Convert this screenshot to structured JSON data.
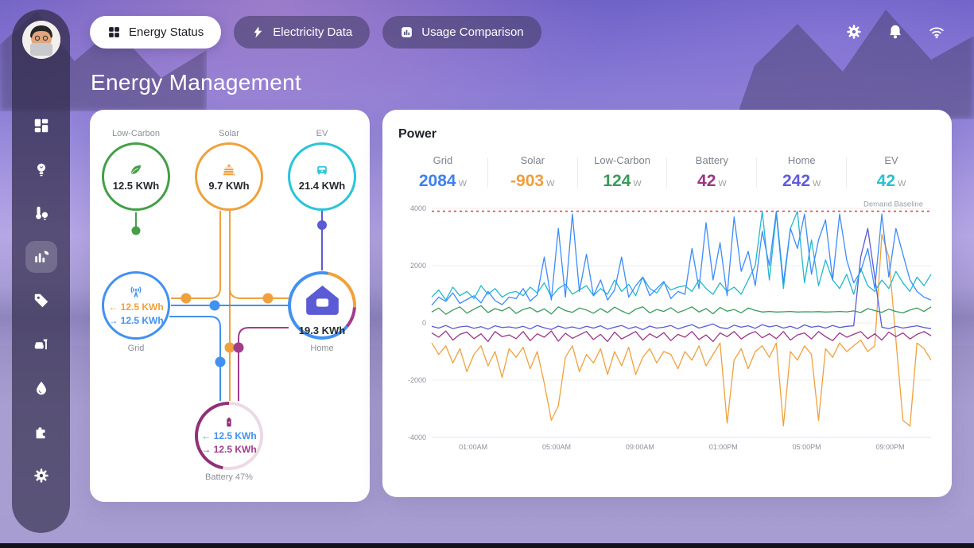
{
  "topbar": {
    "tabs": [
      {
        "id": "energy-status",
        "label": "Energy Status",
        "icon": "grid-icon",
        "active": true
      },
      {
        "id": "electricity-data",
        "label": "Electricity Data",
        "icon": "bolt-icon",
        "active": false
      },
      {
        "id": "usage-comparison",
        "label": "Usage Comparison",
        "icon": "bar-chart-icon",
        "active": false
      }
    ],
    "actions": [
      {
        "icon": "gear-icon"
      },
      {
        "icon": "bell-icon"
      },
      {
        "icon": "wifi-icon"
      }
    ]
  },
  "sidebar": {
    "items": [
      {
        "icon": "dashboard-icon",
        "active": false
      },
      {
        "icon": "bulb-icon",
        "active": false
      },
      {
        "icon": "climate-icon",
        "active": false
      },
      {
        "icon": "energy-chart-icon",
        "active": true
      },
      {
        "icon": "tag-icon",
        "active": false
      },
      {
        "icon": "room-icon",
        "active": false
      },
      {
        "icon": "water-icon",
        "active": false
      },
      {
        "icon": "puzzle-icon",
        "active": false
      },
      {
        "icon": "settings-icon",
        "active": false
      }
    ]
  },
  "page_title": "Energy Management",
  "flow": {
    "nodes": {
      "low_carbon": {
        "label": "Low-Carbon",
        "value": "12.5 KWh",
        "color": "#43a047"
      },
      "solar": {
        "label": "Solar",
        "value": "9.7 KWh",
        "color": "#f0a13d"
      },
      "ev": {
        "label": "EV",
        "value": "21.4 KWh",
        "color": "#29c4d9"
      },
      "grid": {
        "label": "Grid",
        "in": "← 12.5 KWh",
        "out": "→ 12.5 KWh",
        "color": "#4191f1",
        "in_color": "#f0a13d",
        "out_color": "#4191f1"
      },
      "home": {
        "label": "Home",
        "value": "19.3 KWh",
        "color": "#4191f1",
        "icon_color": "#5b5bd6"
      },
      "battery": {
        "label": "Battery 47%",
        "in": "← 12.5 KWh",
        "out": "→ 12.5 KWh",
        "percent": 47,
        "color": "#8e3178",
        "ring_rest": "#ecd9e6",
        "in_color": "#4191f1",
        "out_color": "#a13c8c"
      }
    }
  },
  "power": {
    "title": "Power",
    "stats": [
      {
        "label": "Grid",
        "value": "2084",
        "unit": "W",
        "color": "#3f7ff2"
      },
      {
        "label": "Solar",
        "value": "-903",
        "unit": "W",
        "color": "#f09d3c"
      },
      {
        "label": "Low-Carbon",
        "value": "124",
        "unit": "W",
        "color": "#3a9a5c"
      },
      {
        "label": "Battery",
        "value": "42",
        "unit": "W",
        "color": "#9c3587"
      },
      {
        "label": "Home",
        "value": "242",
        "unit": "W",
        "color": "#5f5ce0"
      },
      {
        "label": "EV",
        "value": "42",
        "unit": "W",
        "color": "#29c0d0"
      }
    ]
  },
  "chart_data": {
    "type": "line",
    "title": "Power",
    "ylabel": "W",
    "ylim": [
      -4000,
      4000
    ],
    "yticks": [
      4000,
      2000,
      0,
      -2000,
      -4000
    ],
    "xticks": [
      "01:00AM",
      "05:00AM",
      "09:00AM",
      "01:00PM",
      "05:00PM",
      "09:00PM"
    ],
    "grid": true,
    "legend_position": "none",
    "baseline": {
      "label": "Demand Baseline",
      "value": 3900,
      "color": "#e64545"
    },
    "series": [
      {
        "name": "Solar",
        "color": "#f0a13d",
        "values": [
          -700,
          -1100,
          -800,
          -1400,
          -900,
          -1700,
          -1100,
          -800,
          -1500,
          -1000,
          -1900,
          -900,
          -1200,
          -850,
          -1600,
          -1000,
          -2100,
          -3400,
          -2900,
          -1200,
          -800,
          -1700,
          -1100,
          -1400,
          -900,
          -1800,
          -1000,
          -1500,
          -850,
          -1800,
          -1200,
          -900,
          -1400,
          -1000,
          -1100,
          -1600,
          -1000,
          -1300,
          -800,
          -1500,
          -1100,
          -700,
          -3500,
          -1300,
          -900,
          -1600,
          -1000,
          -800,
          -1200,
          -700,
          -3600,
          -1000,
          -1300,
          -800,
          -1100,
          -3400,
          -900,
          -1200,
          -700,
          -1000,
          -800,
          -600,
          -1000,
          -800,
          3100,
          2300,
          -600,
          -3400,
          -3600,
          -700,
          -900,
          -1300
        ]
      },
      {
        "name": "Battery",
        "color": "#9c3587",
        "values": [
          -350,
          -500,
          -280,
          -600,
          -400,
          -320,
          -550,
          -380,
          -650,
          -300,
          -480,
          -420,
          -550,
          -300,
          -620,
          -380,
          -500,
          -280,
          -640,
          -360,
          -540,
          -420,
          -300,
          -580,
          -400,
          -650,
          -320,
          -560,
          -430,
          -300,
          -600,
          -380,
          -520,
          -340,
          -620,
          -400,
          -500,
          -300,
          -580,
          -420,
          -650,
          -350,
          -480,
          -300,
          -560,
          -400,
          -300,
          -520,
          -380,
          -550,
          -300,
          -600,
          -420,
          -350,
          -560,
          -300,
          -480,
          -620,
          -350,
          -500,
          -400,
          -300,
          -550,
          -380,
          -600,
          -320,
          -480,
          -350,
          -560,
          -400,
          -300,
          -450
        ]
      },
      {
        "name": "Home",
        "color": "#5b5bd6",
        "values": [
          -120,
          -180,
          -90,
          -200,
          -140,
          -110,
          -190,
          -130,
          -220,
          -100,
          -160,
          -140,
          -180,
          -120,
          -210,
          -90,
          -170,
          -230,
          -110,
          -190,
          -140,
          -200,
          -120,
          -180,
          -100,
          -220,
          -150,
          -90,
          -200,
          -130,
          -240,
          -110,
          -180,
          -150,
          -90,
          -210,
          -130,
          -60,
          -180,
          -110,
          -40,
          -160,
          -200,
          -80,
          -150,
          -100,
          -190,
          -60,
          -140,
          -90,
          -180,
          -120,
          -200,
          -70,
          -150,
          -110,
          -180,
          -90,
          -160,
          -120,
          -100,
          2300,
          3300,
          1600,
          -150,
          -200,
          -120,
          -180,
          -140,
          -100,
          -160,
          -200
        ]
      },
      {
        "name": "Low-Carbon",
        "color": "#3a9a5c",
        "values": [
          380,
          520,
          300,
          450,
          560,
          340,
          480,
          600,
          360,
          500,
          420,
          550,
          330,
          470,
          540,
          380,
          490,
          310,
          560,
          430,
          370,
          520,
          450,
          340,
          500,
          360,
          550,
          420,
          310,
          480,
          560,
          350,
          470,
          400,
          530,
          360,
          450,
          560,
          380,
          500,
          320,
          540,
          410,
          470,
          350,
          520,
          440,
          380,
          400,
          380,
          390,
          400,
          380,
          390,
          385,
          395,
          380,
          390,
          400,
          385,
          420,
          360,
          500,
          430,
          370,
          480,
          400,
          350,
          450,
          520,
          400,
          560
        ]
      },
      {
        "name": "EV",
        "color": "#22b8cf",
        "values": [
          900,
          1150,
          800,
          1250,
          950,
          1100,
          850,
          1300,
          1000,
          1200,
          900,
          1050,
          1100,
          950,
          1250,
          1050,
          1400,
          900,
          1200,
          1350,
          1000,
          1150,
          1300,
          950,
          1200,
          1000,
          1500,
          1100,
          1350,
          950,
          1600,
          1200,
          1050,
          1400,
          1150,
          1250,
          1300,
          1100,
          1500,
          1200,
          1000,
          1400,
          1100,
          1250,
          1000,
          1500,
          2000,
          3900,
          1500,
          3800,
          1200,
          3300,
          3900,
          1400,
          2900,
          1300,
          2200,
          1500,
          1200,
          1700,
          1000,
          1900,
          1300,
          1100,
          1500,
          1200,
          1800,
          1400,
          1100,
          1600,
          1300,
          1700
        ]
      },
      {
        "name": "Grid",
        "color": "#3d8bfd",
        "values": [
          620,
          900,
          750,
          1050,
          680,
          820,
          950,
          700,
          1100,
          780,
          640,
          900,
          850,
          1200,
          760,
          980,
          2300,
          800,
          3300,
          900,
          3800,
          1100,
          2400,
          950,
          1500,
          800,
          1150,
          2300,
          900,
          1300,
          1600,
          950,
          1200,
          1450,
          850,
          1100,
          1000,
          2600,
          1200,
          3500,
          1500,
          2800,
          950,
          3700,
          1800,
          2500,
          1300,
          3200,
          2000,
          3900,
          1400,
          3300,
          2600,
          3800,
          1700,
          2900,
          3600,
          1500,
          3800,
          2200,
          1400,
          1800,
          2600,
          1200,
          3800,
          1600,
          3300,
          2400,
          1500,
          1100,
          900,
          800
        ]
      }
    ]
  }
}
